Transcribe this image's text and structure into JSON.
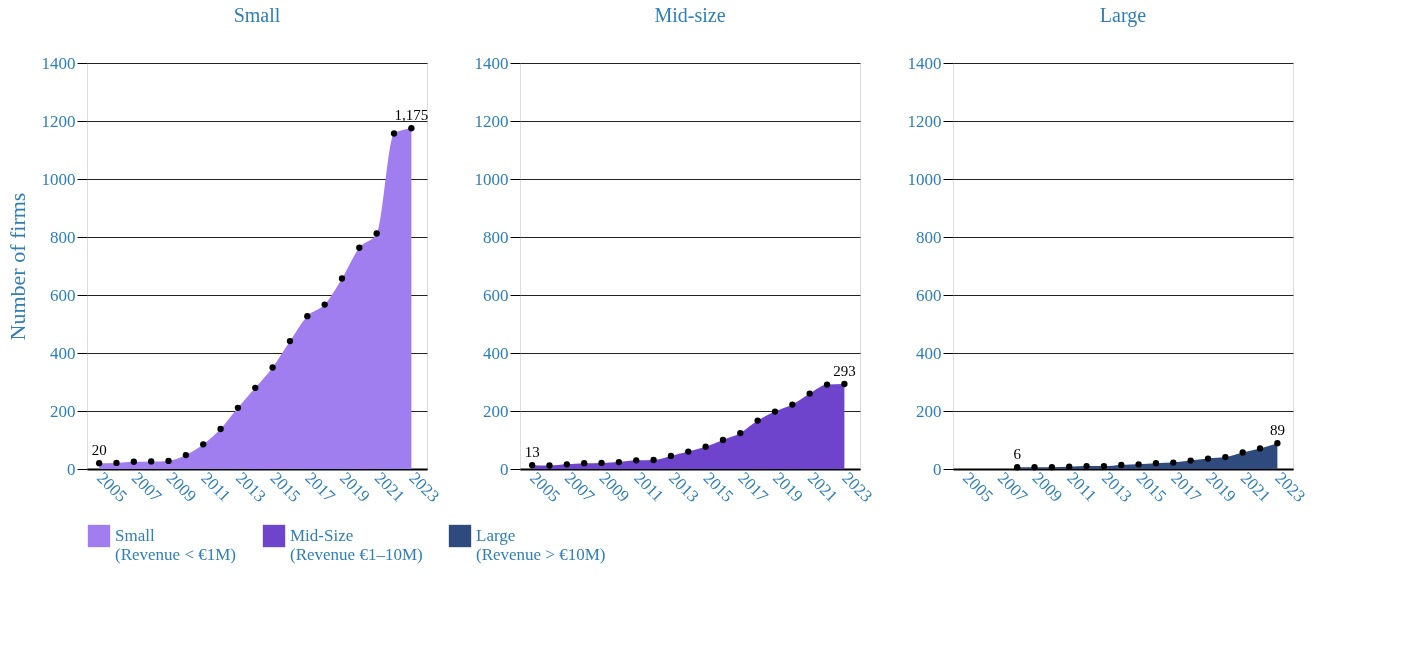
{
  "chart_data": [
    {
      "type": "area",
      "title": "Small",
      "ylabel": "Number of firms",
      "x": [
        2005,
        2006,
        2007,
        2008,
        2009,
        2010,
        2011,
        2012,
        2013,
        2014,
        2015,
        2016,
        2017,
        2018,
        2019,
        2020,
        2021,
        2022,
        2023
      ],
      "xlim": [
        2004.3,
        2023.9
      ],
      "xticks": [
        2005,
        2007,
        2009,
        2011,
        2013,
        2015,
        2017,
        2019,
        2021,
        2023
      ],
      "ylim": [
        0,
        1400
      ],
      "yticks": [
        0,
        200,
        400,
        600,
        800,
        1000,
        1200,
        1400
      ],
      "grid": "y",
      "marker": "circle",
      "legend": "bottom",
      "series": [
        {
          "name": "Small\n(Revenue < €1M)",
          "color": "#a07ef0",
          "values": [
            20,
            21,
            25,
            26,
            28,
            48,
            85,
            138,
            211,
            280,
            350,
            441,
            527,
            567,
            657,
            763,
            812,
            1157,
            1175
          ],
          "value_labels": [
            "20",
            null,
            null,
            null,
            null,
            null,
            null,
            null,
            null,
            null,
            null,
            null,
            null,
            null,
            null,
            null,
            null,
            null,
            "1,175"
          ]
        }
      ]
    },
    {
      "type": "area",
      "title": "Mid-size",
      "x": [
        2005,
        2006,
        2007,
        2008,
        2009,
        2010,
        2011,
        2012,
        2013,
        2014,
        2015,
        2016,
        2017,
        2018,
        2019,
        2020,
        2021,
        2022,
        2023
      ],
      "xlim": [
        2004.3,
        2023.9
      ],
      "xticks": [
        2005,
        2007,
        2009,
        2011,
        2013,
        2015,
        2017,
        2019,
        2021,
        2023
      ],
      "ylim": [
        0,
        1400
      ],
      "yticks": [
        0,
        200,
        400,
        600,
        800,
        1000,
        1200,
        1400
      ],
      "grid": "y",
      "marker": "circle",
      "legend": "bottom",
      "series": [
        {
          "name": "Mid-Size\n(Revenue €1–10M)",
          "color": "#6e44cc",
          "values": [
            13,
            12,
            16,
            20,
            21,
            24,
            30,
            31,
            45,
            60,
            77,
            100,
            124,
            167,
            198,
            222,
            260,
            291,
            293
          ],
          "value_labels": [
            "13",
            null,
            null,
            null,
            null,
            null,
            null,
            null,
            null,
            null,
            null,
            null,
            null,
            null,
            null,
            null,
            null,
            null,
            "293"
          ]
        }
      ]
    },
    {
      "type": "area",
      "title": "Large",
      "xlim": [
        2004.3,
        2023.9
      ],
      "xticks": [
        2005,
        2007,
        2009,
        2011,
        2013,
        2015,
        2017,
        2019,
        2021,
        2023
      ],
      "ylim": [
        0,
        1400
      ],
      "yticks": [
        0,
        200,
        400,
        600,
        800,
        1000,
        1200,
        1400
      ],
      "grid": "y",
      "marker": "circle",
      "legend": "bottom",
      "series": [
        {
          "name": "Large\n(Revenue > €10M)",
          "color": "#2f4a7d",
          "x": [
            2008,
            2009,
            2010,
            2011,
            2012,
            2013,
            2014,
            2015,
            2016,
            2017,
            2018,
            2019,
            2020,
            2021,
            2022,
            2023
          ],
          "values": [
            6,
            6,
            6,
            8,
            10,
            10,
            14,
            16,
            20,
            22,
            29,
            36,
            41,
            57,
            71,
            89
          ],
          "value_labels": [
            "6",
            null,
            null,
            null,
            null,
            null,
            null,
            null,
            null,
            null,
            null,
            null,
            null,
            null,
            null,
            "89"
          ]
        }
      ]
    }
  ]
}
